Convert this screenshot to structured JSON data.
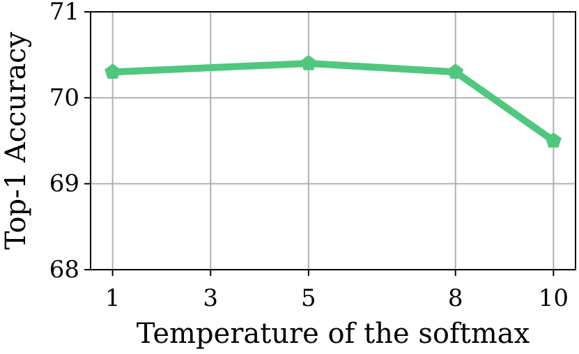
{
  "chart_data": {
    "type": "line",
    "x_label": "Temperature of the softmax",
    "y_label": "Top-1 Accuracy",
    "x": [
      1,
      5,
      8,
      10
    ],
    "series": [
      {
        "name": "Top-1 Accuracy",
        "color": "#50c77e",
        "marker": "pentagon",
        "values": [
          70.3,
          70.4,
          70.3,
          69.5
        ]
      }
    ],
    "xlim": [
      0.55,
      10.45
    ],
    "xticks": [
      1,
      3,
      5,
      8,
      10
    ],
    "ylim": [
      68,
      71
    ],
    "yticks": [
      68,
      69,
      70,
      71
    ],
    "grid": true
  }
}
